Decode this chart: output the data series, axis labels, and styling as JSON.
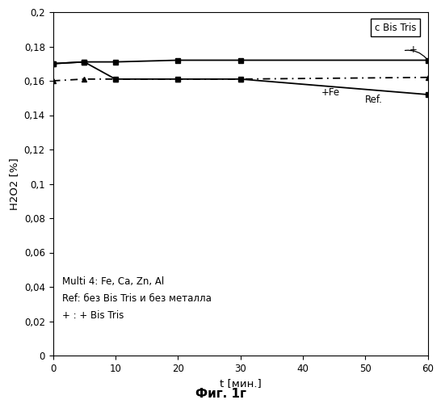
{
  "title": "",
  "xlabel": "t [мин.]",
  "ylabel": "H2O2 [%]",
  "fig_title": "Фиг. 1г",
  "xlim": [
    0,
    60
  ],
  "ylim": [
    0,
    0.2
  ],
  "yticks": [
    0,
    0.02,
    0.04,
    0.06,
    0.08,
    0.1,
    0.12,
    0.14,
    0.16,
    0.18,
    0.2
  ],
  "xticks": [
    0,
    10,
    20,
    30,
    40,
    50,
    60
  ],
  "legend_text": "c Bis Tris",
  "annotation_fe": "+Fe",
  "annotation_ref": "Ref.",
  "annotation_plus": "+",
  "text_line1": "Multi 4: Fe, Ca, Zn, Al",
  "text_line2": "Ref: без Bis Tris и без металла",
  "text_line3": "+ : + Bis Tris",
  "series_plus": {
    "x": [
      0,
      5,
      10,
      20,
      30,
      60
    ],
    "y": [
      0.17,
      0.171,
      0.171,
      0.172,
      0.172,
      0.172
    ],
    "marker": "s",
    "linestyle": "-",
    "color": "#000000"
  },
  "series_fe": {
    "x": [
      0,
      5,
      10,
      20,
      30,
      60
    ],
    "y": [
      0.17,
      0.171,
      0.161,
      0.161,
      0.161,
      0.152
    ],
    "marker": "s",
    "linestyle": "-",
    "color": "#000000"
  },
  "series_ref": {
    "x": [
      0,
      5,
      10,
      20,
      30,
      60
    ],
    "y": [
      0.16,
      0.161,
      0.161,
      0.161,
      0.161,
      0.162
    ],
    "marker": "^",
    "linestyle": "-.",
    "color": "#000000"
  },
  "background_color": "#ffffff",
  "fontsize_tick": 8.5,
  "fontsize_label": 9.5,
  "fontsize_annotation": 8.5,
  "fontsize_text": 8.5,
  "fontsize_title": 11
}
